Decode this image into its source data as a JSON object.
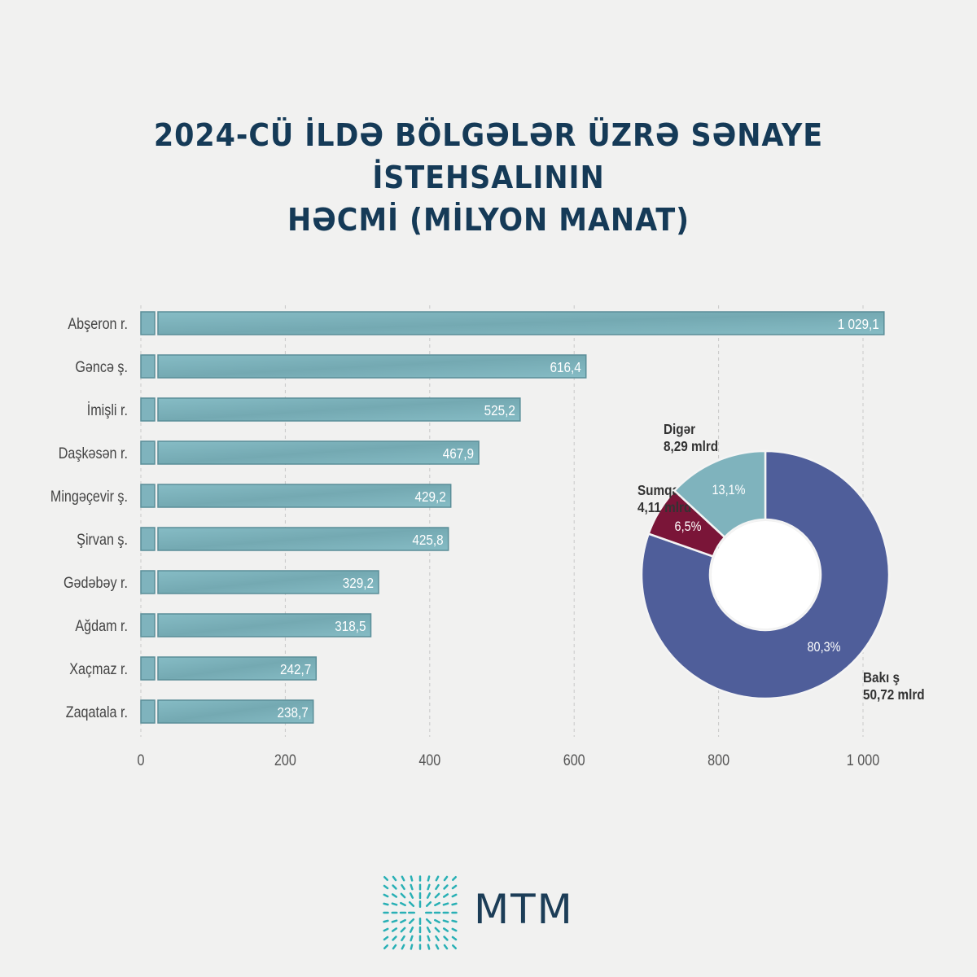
{
  "title": {
    "line1": "2024-CÜ İLDƏ BÖLGƏLƏR ÜZRƏ SƏNAYE İSTEHSALININ",
    "line2": "HƏCMİ (MİLYON MANAT)"
  },
  "chart_data": [
    {
      "type": "bar",
      "orientation": "horizontal",
      "categories": [
        "Abşeron r.",
        "Gəncə ş.",
        "İmişli r.",
        "Daşkəsən r.",
        "Mingəçevir ş.",
        "Şirvan ş.",
        "Gədəbəy r.",
        "Ağdam r.",
        "Xaçmaz r.",
        "Zaqatala r."
      ],
      "values": [
        1029.1,
        616.4,
        525.2,
        467.9,
        429.2,
        425.8,
        329.2,
        318.5,
        242.7,
        238.7
      ],
      "value_labels": [
        "1 029,1",
        "616,4",
        "525,2",
        "467,9",
        "429,2",
        "425,8",
        "329,2",
        "318,5",
        "242,7",
        "238,7"
      ],
      "xlim": [
        0,
        1000
      ],
      "xticks": [
        0,
        200,
        400,
        600,
        800,
        1000
      ],
      "xtick_labels": [
        "0",
        "200",
        "400",
        "600",
        "800",
        "1 000"
      ],
      "grid": true,
      "color": "#7fb3bd"
    },
    {
      "type": "pie",
      "donut": true,
      "slices": [
        {
          "name": "Bakı ş",
          "value": 50.72,
          "value_label": "50,72 mlrd",
          "percent": 80.3,
          "percent_label": "80,3%",
          "color": "#4f5e9a"
        },
        {
          "name": "Sumqayıt ş.",
          "value": 4.11,
          "value_label": "4,11 mlrd",
          "percent": 6.5,
          "percent_label": "6,5%",
          "color": "#7a1538"
        },
        {
          "name": "Digər",
          "value": 8.29,
          "value_label": "8,29 mlrd",
          "percent": 13.1,
          "percent_label": "13,1%",
          "color": "#7fb3bd"
        }
      ]
    }
  ],
  "logo": {
    "text": "MTM",
    "color": "#29b0b5"
  }
}
